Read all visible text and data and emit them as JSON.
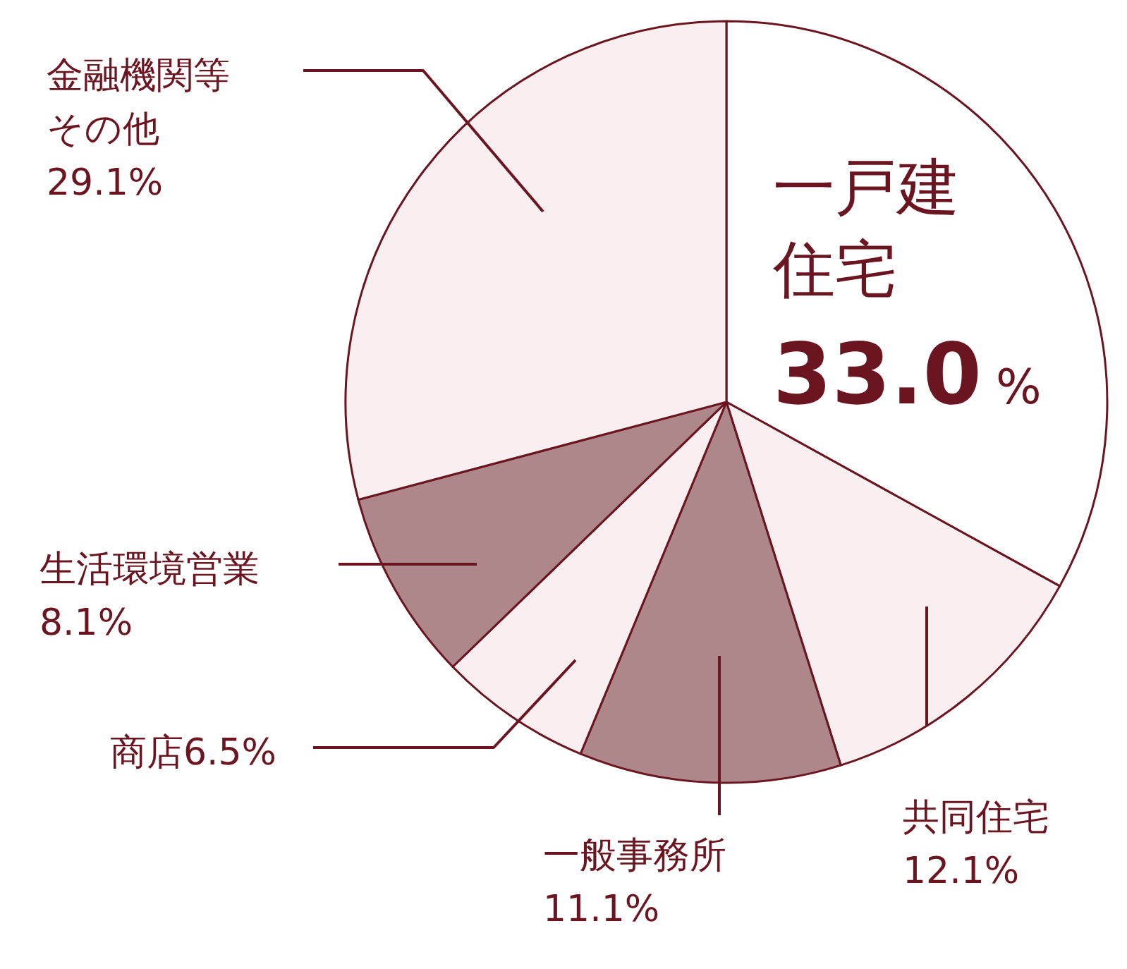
{
  "chart_data": {
    "type": "pie",
    "categories": [
      "一戸建住宅",
      "共同住宅",
      "一般事務所",
      "商店",
      "生活環境営業",
      "金融機関等その他"
    ],
    "values": [
      33.0,
      12.1,
      11.1,
      6.5,
      8.1,
      29.1
    ],
    "colors": [
      "#ffffff",
      "#f9eef0",
      "#ae878b",
      "#f9eef0",
      "#ae878b",
      "#f9eef0"
    ],
    "value_labels": [
      "33.0%",
      "12.1%",
      "11.1%",
      "6.5%",
      "8.1%",
      "29.1%"
    ]
  }
}
